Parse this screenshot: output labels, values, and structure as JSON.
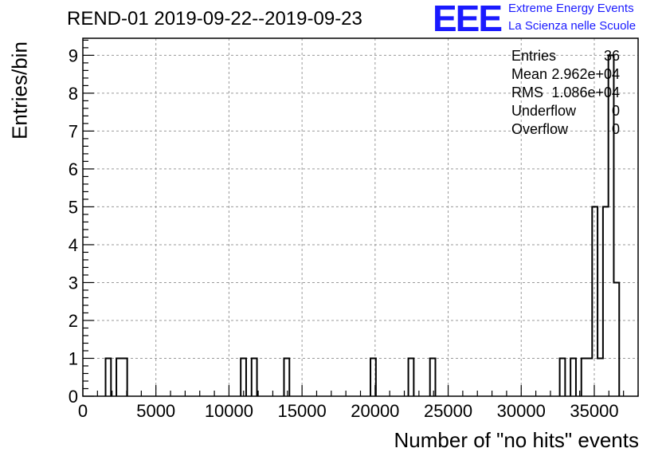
{
  "chart_data": {
    "type": "histogram",
    "title": "REND-01 2019-09-22--2019-09-23",
    "xlabel": "Number of \"no hits\" events",
    "ylabel": "Entries/bin",
    "xlim": [
      0,
      38000
    ],
    "ylim": [
      0,
      9.45
    ],
    "grid": true,
    "xticks": [
      "0",
      "5000",
      "10000",
      "15000",
      "20000",
      "25000",
      "30000",
      "35000"
    ],
    "xtick_values": [
      0,
      5000,
      10000,
      15000,
      20000,
      25000,
      30000,
      35000
    ],
    "yticks": [
      "0",
      "1",
      "2",
      "3",
      "4",
      "5",
      "6",
      "7",
      "8",
      "9"
    ],
    "ytick_values": [
      0,
      1,
      2,
      3,
      4,
      5,
      6,
      7,
      8,
      9
    ],
    "bin_width": 370,
    "bins": [
      {
        "start": 1555,
        "count": 1
      },
      {
        "start": 2295,
        "count": 1
      },
      {
        "start": 2665,
        "count": 1
      },
      {
        "start": 10805,
        "count": 1
      },
      {
        "start": 11545,
        "count": 1
      },
      {
        "start": 13765,
        "count": 1
      },
      {
        "start": 19685,
        "count": 1
      },
      {
        "start": 22275,
        "count": 1
      },
      {
        "start": 23755,
        "count": 1
      },
      {
        "start": 32635,
        "count": 1
      },
      {
        "start": 33375,
        "count": 1
      },
      {
        "start": 34115,
        "count": 1
      },
      {
        "start": 34485,
        "count": 1
      },
      {
        "start": 34855,
        "count": 5
      },
      {
        "start": 35225,
        "count": 1
      },
      {
        "start": 35595,
        "count": 5
      },
      {
        "start": 35965,
        "count": 9
      },
      {
        "start": 36335,
        "count": 3
      }
    ],
    "stats": [
      {
        "key": "Entries",
        "value": "36"
      },
      {
        "key": "Mean",
        "value": "2.962e+04"
      },
      {
        "key": "RMS",
        "value": "1.086e+04"
      },
      {
        "key": "Underflow",
        "value": "0"
      },
      {
        "key": "Overflow",
        "value": "0"
      }
    ]
  },
  "logo": {
    "letters": "EEE",
    "line1": "Extreme Energy Events",
    "line2": "La Scienza nelle Scuole"
  }
}
